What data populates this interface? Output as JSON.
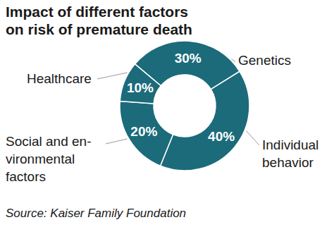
{
  "chart_data": {
    "type": "pie",
    "title": [
      "Impact of different factors",
      "on risk of premature death"
    ],
    "categories": [
      [
        "Genetics"
      ],
      [
        "Individual",
        "behavior"
      ],
      [
        "Social and en-",
        "vironmental",
        "factors"
      ],
      [
        "Healthcare"
      ]
    ],
    "values": [
      30,
      40,
      20,
      10
    ],
    "value_labels": [
      "30%",
      "40%",
      "20%",
      "10%"
    ],
    "data_labels": true,
    "color": "#1b6b7b",
    "source": "Source: Kaiser Family Foundation"
  }
}
